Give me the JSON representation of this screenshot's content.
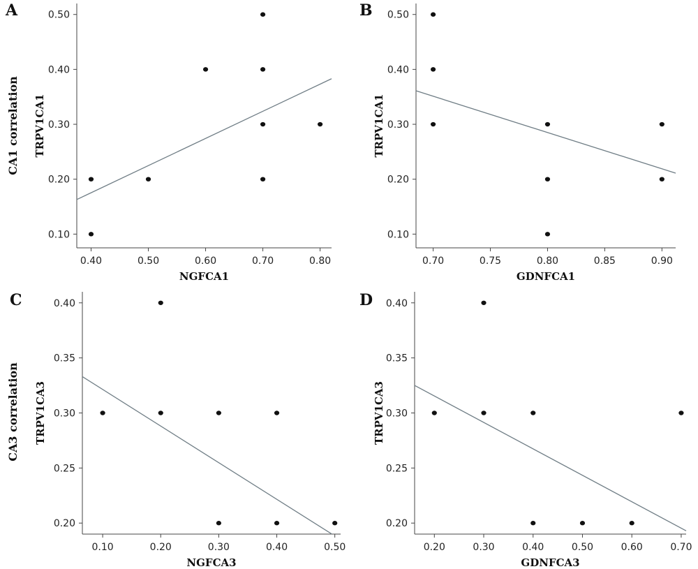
{
  "row_labels": [
    "CA1 correlation",
    "CA3 correlation"
  ],
  "chart_data": [
    {
      "type": "scatter",
      "panel": "A",
      "xlabel": "NGFCA1",
      "ylabel": "TRPV1CA1",
      "xlim": [
        0.375,
        0.82
      ],
      "ylim": [
        0.075,
        0.52
      ],
      "xticks": [
        0.4,
        0.5,
        0.6,
        0.7,
        0.8
      ],
      "xtick_labels": [
        "0.40",
        "0.50",
        "0.60",
        "0.70",
        "0.80"
      ],
      "yticks": [
        0.1,
        0.2,
        0.3,
        0.4,
        0.5
      ],
      "ytick_labels": [
        "0.10",
        "0.20",
        "0.30",
        "0.40",
        "0.50"
      ],
      "points": [
        {
          "x": 0.4,
          "y": 0.1
        },
        {
          "x": 0.4,
          "y": 0.2
        },
        {
          "x": 0.5,
          "y": 0.2
        },
        {
          "x": 0.6,
          "y": 0.4
        },
        {
          "x": 0.7,
          "y": 0.5
        },
        {
          "x": 0.7,
          "y": 0.4
        },
        {
          "x": 0.7,
          "y": 0.3
        },
        {
          "x": 0.7,
          "y": 0.2
        },
        {
          "x": 0.8,
          "y": 0.3
        }
      ],
      "fit_line": [
        {
          "x": 0.375,
          "y": 0.163
        },
        {
          "x": 0.82,
          "y": 0.383
        }
      ]
    },
    {
      "type": "scatter",
      "panel": "B",
      "xlabel": "GDNFCA1",
      "ylabel": "TRPV1CA1",
      "xlim": [
        0.685,
        0.912
      ],
      "ylim": [
        0.075,
        0.52
      ],
      "xticks": [
        0.7,
        0.75,
        0.8,
        0.85,
        0.9
      ],
      "xtick_labels": [
        "0.70",
        "0.75",
        "0.80",
        "0.85",
        "0.90"
      ],
      "yticks": [
        0.1,
        0.2,
        0.3,
        0.4,
        0.5
      ],
      "ytick_labels": [
        "0.10",
        "0.20",
        "0.30",
        "0.40",
        "0.50"
      ],
      "points": [
        {
          "x": 0.7,
          "y": 0.5
        },
        {
          "x": 0.7,
          "y": 0.4
        },
        {
          "x": 0.7,
          "y": 0.3
        },
        {
          "x": 0.8,
          "y": 0.3
        },
        {
          "x": 0.8,
          "y": 0.2
        },
        {
          "x": 0.8,
          "y": 0.1
        },
        {
          "x": 0.9,
          "y": 0.3
        },
        {
          "x": 0.9,
          "y": 0.2
        }
      ],
      "fit_line": [
        {
          "x": 0.685,
          "y": 0.361
        },
        {
          "x": 0.912,
          "y": 0.211
        }
      ]
    },
    {
      "type": "scatter",
      "panel": "C",
      "xlabel": "NGFCA3",
      "ylabel": "TRPV1CA3",
      "xlim": [
        0.065,
        0.51
      ],
      "ylim": [
        0.19,
        0.41
      ],
      "xticks": [
        0.1,
        0.2,
        0.3,
        0.4,
        0.5
      ],
      "xtick_labels": [
        "0.10",
        "0.20",
        "0.30",
        "0.40",
        "0.50"
      ],
      "yticks": [
        0.2,
        0.25,
        0.3,
        0.35,
        0.4
      ],
      "ytick_labels": [
        "0.20",
        "0.25",
        "0.30",
        "0.35",
        "0.40"
      ],
      "points": [
        {
          "x": 0.1,
          "y": 0.3
        },
        {
          "x": 0.2,
          "y": 0.4
        },
        {
          "x": 0.2,
          "y": 0.3
        },
        {
          "x": 0.3,
          "y": 0.3
        },
        {
          "x": 0.3,
          "y": 0.2
        },
        {
          "x": 0.4,
          "y": 0.3
        },
        {
          "x": 0.4,
          "y": 0.2
        },
        {
          "x": 0.5,
          "y": 0.2
        }
      ],
      "fit_line": [
        {
          "x": 0.065,
          "y": 0.333
        },
        {
          "x": 0.495,
          "y": 0.19
        }
      ]
    },
    {
      "type": "scatter",
      "panel": "D",
      "xlabel": "GDNFCA3",
      "ylabel": "TRPV1CA3",
      "xlim": [
        0.16,
        0.71
      ],
      "ylim": [
        0.19,
        0.41
      ],
      "xticks": [
        0.2,
        0.3,
        0.4,
        0.5,
        0.6,
        0.7
      ],
      "xtick_labels": [
        "0.20",
        "0.30",
        "0.40",
        "0.50",
        "0.60",
        "0.70"
      ],
      "yticks": [
        0.2,
        0.25,
        0.3,
        0.35,
        0.4
      ],
      "ytick_labels": [
        "0.20",
        "0.25",
        "0.30",
        "0.35",
        "0.40"
      ],
      "points": [
        {
          "x": 0.2,
          "y": 0.3
        },
        {
          "x": 0.3,
          "y": 0.4
        },
        {
          "x": 0.3,
          "y": 0.3
        },
        {
          "x": 0.4,
          "y": 0.3
        },
        {
          "x": 0.4,
          "y": 0.2
        },
        {
          "x": 0.5,
          "y": 0.2
        },
        {
          "x": 0.6,
          "y": 0.2
        },
        {
          "x": 0.7,
          "y": 0.3
        }
      ],
      "fit_line": [
        {
          "x": 0.16,
          "y": 0.325
        },
        {
          "x": 0.71,
          "y": 0.193
        }
      ]
    }
  ]
}
